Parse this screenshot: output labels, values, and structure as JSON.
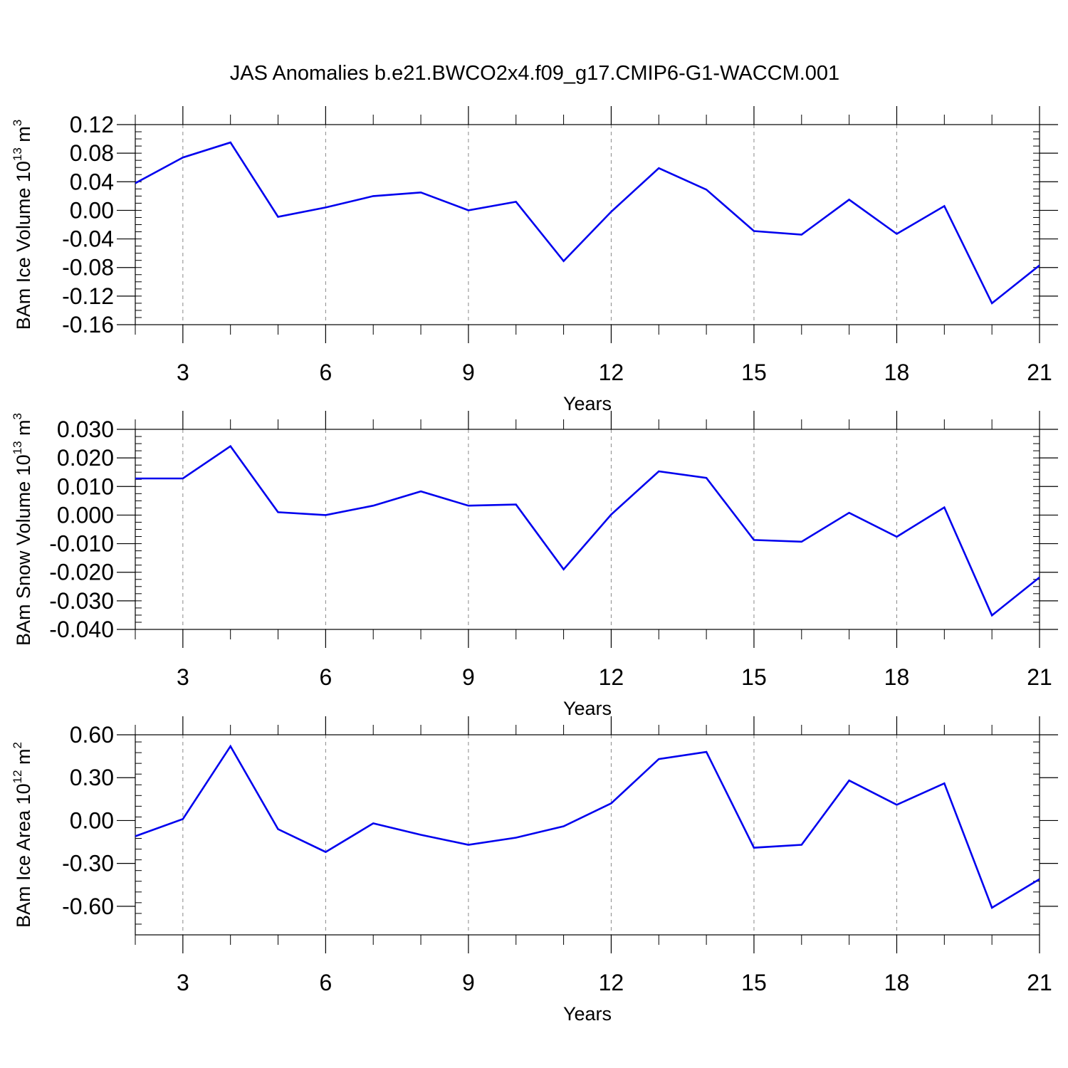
{
  "title": "JAS Anomalies b.e21.BWCO2x4.f09_g17.CMIP6-G1-WACCM.001",
  "colors": {
    "line": "#0000ee",
    "axis": "#000000",
    "grid": "#888888"
  },
  "chart_data": [
    {
      "type": "line",
      "ylabel": "BAm Ice Volume 10",
      "ylabel_exp": "13",
      "ylabel_unit": " m",
      "ylabel_unit_exp": "3",
      "xlabel": "Years",
      "xlim": [
        2,
        21
      ],
      "ylim": [
        -0.16,
        0.12
      ],
      "yticks": [
        -0.16,
        -0.12,
        -0.08,
        -0.04,
        0.0,
        0.04,
        0.08,
        0.12
      ],
      "ytick_labels": [
        "-0.16",
        "-0.12",
        "-0.08",
        "-0.04",
        "0.00",
        "0.04",
        "0.08",
        "0.12"
      ],
      "xticks": [
        3,
        6,
        9,
        12,
        15,
        18,
        21
      ],
      "xtick_labels": [
        "3",
        "6",
        "9",
        "12",
        "15",
        "18",
        "21"
      ],
      "grid": "vertical-dashed",
      "x": [
        2,
        3,
        4,
        5,
        6,
        7,
        8,
        9,
        10,
        11,
        12,
        13,
        14,
        15,
        16,
        17,
        18,
        19,
        20,
        21
      ],
      "values": [
        0.038,
        0.074,
        0.095,
        -0.009,
        0.004,
        0.02,
        0.025,
        0.0,
        0.012,
        -0.071,
        -0.002,
        0.059,
        0.029,
        -0.029,
        -0.034,
        0.015,
        -0.033,
        0.006,
        -0.13,
        -0.077
      ]
    },
    {
      "type": "line",
      "ylabel": "BAm Snow Volume 10",
      "ylabel_exp": "13",
      "ylabel_unit": " m",
      "ylabel_unit_exp": "3",
      "xlabel": "Years",
      "xlim": [
        2,
        21
      ],
      "ylim": [
        -0.04,
        0.03
      ],
      "yticks": [
        -0.04,
        -0.03,
        -0.02,
        -0.01,
        0.0,
        0.01,
        0.02,
        0.03
      ],
      "ytick_labels": [
        "-0.040",
        "-0.030",
        "-0.020",
        "-0.010",
        "0.000",
        "0.010",
        "0.020",
        "0.030"
      ],
      "xticks": [
        3,
        6,
        9,
        12,
        15,
        18,
        21
      ],
      "xtick_labels": [
        "3",
        "6",
        "9",
        "12",
        "15",
        "18",
        "21"
      ],
      "grid": "vertical-dashed",
      "x": [
        2,
        3,
        4,
        5,
        6,
        7,
        8,
        9,
        10,
        11,
        12,
        13,
        14,
        15,
        16,
        17,
        18,
        19,
        20,
        21
      ],
      "values": [
        0.0128,
        0.0128,
        0.0241,
        0.001,
        0.0,
        0.0033,
        0.0083,
        0.0033,
        0.0037,
        -0.019,
        0.0002,
        0.0153,
        0.013,
        -0.0087,
        -0.0093,
        0.0008,
        -0.0076,
        0.0027,
        -0.0351,
        -0.0218
      ]
    },
    {
      "type": "line",
      "ylabel": "BAm Ice Area 10",
      "ylabel_exp": "12",
      "ylabel_unit": " m",
      "ylabel_unit_exp": "2",
      "xlabel": "Years",
      "xlim": [
        2,
        21
      ],
      "ylim": [
        -0.8,
        0.6
      ],
      "yticks": [
        -0.6,
        -0.3,
        0.0,
        0.3,
        0.6
      ],
      "ytick_labels": [
        "-0.60",
        "-0.30",
        "0.00",
        "0.30",
        "0.60"
      ],
      "xticks": [
        3,
        6,
        9,
        12,
        15,
        18,
        21
      ],
      "xtick_labels": [
        "3",
        "6",
        "9",
        "12",
        "15",
        "18",
        "21"
      ],
      "grid": "vertical-dashed",
      "x": [
        2,
        3,
        4,
        5,
        6,
        7,
        8,
        9,
        10,
        11,
        12,
        13,
        14,
        15,
        16,
        17,
        18,
        19,
        20,
        21
      ],
      "values": [
        -0.11,
        0.01,
        0.52,
        -0.06,
        -0.22,
        -0.02,
        -0.1,
        -0.17,
        -0.12,
        -0.04,
        0.12,
        0.43,
        0.48,
        -0.19,
        -0.17,
        0.28,
        0.11,
        0.26,
        -0.61,
        -0.41
      ]
    }
  ]
}
